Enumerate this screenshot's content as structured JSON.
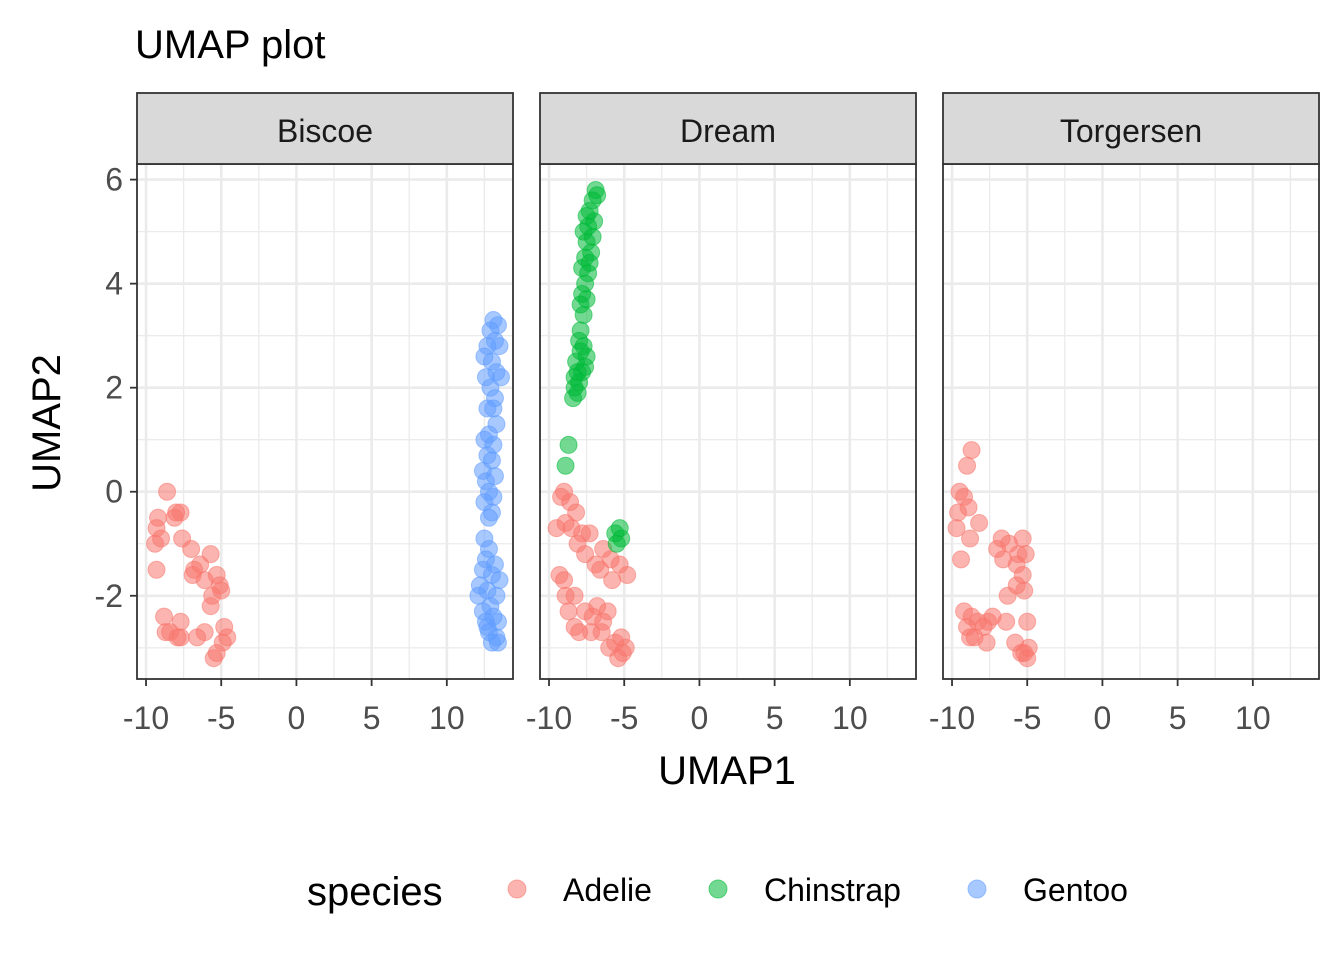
{
  "chart_data": {
    "type": "scatter",
    "title": "UMAP plot",
    "xlabel": "UMAP1",
    "ylabel": "UMAP2",
    "xlim": [
      -10.6,
      14.4
    ],
    "ylim": [
      -3.6,
      6.3
    ],
    "x_ticks": [
      -10,
      -5,
      0,
      5,
      10
    ],
    "y_ticks": [
      -2,
      0,
      2,
      4,
      6
    ],
    "grid": true,
    "legend_position": "bottom",
    "legend_title": "species",
    "facets": [
      "Biscoe",
      "Dream",
      "Torgersen"
    ],
    "series": [
      {
        "name": "Adelie",
        "color": "#F8766D"
      },
      {
        "name": "Chinstrap",
        "color": "#00BA38"
      },
      {
        "name": "Gentoo",
        "color": "#619CFF"
      }
    ],
    "points": {
      "Biscoe": {
        "Adelie": [
          [
            -8.6,
            0.0
          ],
          [
            -8.0,
            -0.4
          ],
          [
            -7.7,
            -0.4
          ],
          [
            -9.2,
            -0.5
          ],
          [
            -9.3,
            -0.7
          ],
          [
            -8.1,
            -0.5
          ],
          [
            -9.4,
            -1.0
          ],
          [
            -9.0,
            -0.9
          ],
          [
            -7.6,
            -0.9
          ],
          [
            -7.0,
            -1.1
          ],
          [
            -6.4,
            -1.4
          ],
          [
            -5.7,
            -1.2
          ],
          [
            -6.8,
            -1.5
          ],
          [
            -6.1,
            -1.7
          ],
          [
            -5.3,
            -1.6
          ],
          [
            -6.9,
            -1.6
          ],
          [
            -5.1,
            -1.8
          ],
          [
            -5.0,
            -1.9
          ],
          [
            -5.6,
            -2.0
          ],
          [
            -5.7,
            -2.2
          ],
          [
            -9.3,
            -1.5
          ],
          [
            -8.8,
            -2.4
          ],
          [
            -7.7,
            -2.5
          ],
          [
            -8.7,
            -2.7
          ],
          [
            -8.4,
            -2.7
          ],
          [
            -7.9,
            -2.8
          ],
          [
            -7.7,
            -2.8
          ],
          [
            -6.6,
            -2.8
          ],
          [
            -6.1,
            -2.7
          ],
          [
            -4.8,
            -2.6
          ],
          [
            -4.6,
            -2.8
          ],
          [
            -4.9,
            -2.9
          ],
          [
            -5.3,
            -3.1
          ],
          [
            -5.5,
            -3.2
          ]
        ],
        "Gentoo": [
          [
            13.1,
            3.3
          ],
          [
            13.4,
            3.2
          ],
          [
            12.9,
            3.1
          ],
          [
            13.2,
            2.9
          ],
          [
            12.7,
            2.8
          ],
          [
            13.5,
            2.8
          ],
          [
            12.5,
            2.6
          ],
          [
            13.0,
            2.5
          ],
          [
            13.3,
            2.3
          ],
          [
            12.6,
            2.2
          ],
          [
            13.6,
            2.2
          ],
          [
            12.9,
            2.0
          ],
          [
            13.2,
            1.8
          ],
          [
            12.7,
            1.6
          ],
          [
            13.1,
            1.6
          ],
          [
            13.3,
            1.3
          ],
          [
            12.8,
            1.1
          ],
          [
            13.1,
            0.9
          ],
          [
            12.5,
            1.0
          ],
          [
            12.7,
            0.7
          ],
          [
            13.0,
            0.6
          ],
          [
            12.4,
            0.4
          ],
          [
            13.2,
            0.3
          ],
          [
            12.6,
            0.2
          ],
          [
            12.8,
            0.0
          ],
          [
            13.1,
            -0.1
          ],
          [
            12.5,
            -0.2
          ],
          [
            13.0,
            -0.4
          ],
          [
            12.8,
            -0.5
          ],
          [
            12.5,
            -0.9
          ],
          [
            12.8,
            -1.1
          ],
          [
            12.6,
            -1.3
          ],
          [
            13.2,
            -1.4
          ],
          [
            12.4,
            -1.5
          ],
          [
            13.0,
            -1.6
          ],
          [
            13.5,
            -1.7
          ],
          [
            12.2,
            -1.8
          ],
          [
            12.7,
            -1.9
          ],
          [
            13.3,
            -2.0
          ],
          [
            12.1,
            -2.0
          ],
          [
            12.9,
            -2.2
          ],
          [
            12.4,
            -2.3
          ],
          [
            13.1,
            -2.4
          ],
          [
            12.6,
            -2.5
          ],
          [
            13.4,
            -2.5
          ],
          [
            12.8,
            -2.7
          ],
          [
            13.3,
            -2.8
          ],
          [
            13.0,
            -2.9
          ],
          [
            13.4,
            -2.9
          ],
          [
            12.7,
            -2.6
          ]
        ]
      },
      "Dream": {
        "Adelie": [
          [
            -9.0,
            0.0
          ],
          [
            -9.2,
            -0.1
          ],
          [
            -8.6,
            -0.2
          ],
          [
            -8.2,
            -0.4
          ],
          [
            -8.9,
            -0.6
          ],
          [
            -8.5,
            -0.7
          ],
          [
            -9.5,
            -0.7
          ],
          [
            -7.8,
            -0.8
          ],
          [
            -8.1,
            -1.0
          ],
          [
            -7.3,
            -0.8
          ],
          [
            -7.6,
            -1.2
          ],
          [
            -6.4,
            -1.1
          ],
          [
            -6.9,
            -1.4
          ],
          [
            -6.6,
            -1.5
          ],
          [
            -5.9,
            -1.3
          ],
          [
            -5.3,
            -1.4
          ],
          [
            -4.8,
            -1.6
          ],
          [
            -5.8,
            -1.7
          ],
          [
            -9.3,
            -1.6
          ],
          [
            -9.0,
            -1.7
          ],
          [
            -8.3,
            -2.0
          ],
          [
            -8.9,
            -2.0
          ],
          [
            -6.8,
            -2.2
          ],
          [
            -6.1,
            -2.3
          ],
          [
            -7.6,
            -2.3
          ],
          [
            -8.7,
            -2.3
          ],
          [
            -7.1,
            -2.4
          ],
          [
            -8.3,
            -2.6
          ],
          [
            -6.4,
            -2.5
          ],
          [
            -7.2,
            -2.7
          ],
          [
            -6.5,
            -2.7
          ],
          [
            -8.0,
            -2.7
          ],
          [
            -5.2,
            -2.8
          ],
          [
            -5.6,
            -2.9
          ],
          [
            -6.0,
            -3.0
          ],
          [
            -5.1,
            -3.1
          ],
          [
            -4.9,
            -3.0
          ],
          [
            -5.4,
            -3.2
          ]
        ],
        "Chinstrap": [
          [
            -6.9,
            5.8
          ],
          [
            -6.8,
            5.7
          ],
          [
            -7.1,
            5.6
          ],
          [
            -7.3,
            5.4
          ],
          [
            -7.5,
            5.3
          ],
          [
            -7.0,
            5.2
          ],
          [
            -7.4,
            5.1
          ],
          [
            -7.7,
            5.0
          ],
          [
            -7.1,
            4.9
          ],
          [
            -7.5,
            4.8
          ],
          [
            -7.2,
            4.6
          ],
          [
            -7.6,
            4.5
          ],
          [
            -7.3,
            4.4
          ],
          [
            -7.8,
            4.3
          ],
          [
            -7.4,
            4.2
          ],
          [
            -7.6,
            4.0
          ],
          [
            -7.8,
            3.8
          ],
          [
            -7.5,
            3.7
          ],
          [
            -7.9,
            3.6
          ],
          [
            -7.7,
            3.4
          ],
          [
            -7.9,
            3.1
          ],
          [
            -8.0,
            2.9
          ],
          [
            -7.7,
            2.8
          ],
          [
            -7.9,
            2.7
          ],
          [
            -7.5,
            2.6
          ],
          [
            -8.2,
            2.5
          ],
          [
            -7.6,
            2.4
          ],
          [
            -8.1,
            2.3
          ],
          [
            -7.8,
            2.3
          ],
          [
            -8.3,
            2.2
          ],
          [
            -8.0,
            2.1
          ],
          [
            -8.3,
            2.0
          ],
          [
            -8.1,
            1.9
          ],
          [
            -8.4,
            1.8
          ],
          [
            -8.7,
            0.9
          ],
          [
            -8.9,
            0.5
          ],
          [
            -5.3,
            -0.7
          ],
          [
            -5.6,
            -0.8
          ],
          [
            -5.2,
            -0.9
          ],
          [
            -5.5,
            -1.0
          ]
        ]
      },
      "Torgersen": {
        "Adelie": [
          [
            -8.7,
            0.8
          ],
          [
            -9.0,
            0.5
          ],
          [
            -9.5,
            0.0
          ],
          [
            -9.2,
            -0.1
          ],
          [
            -8.9,
            -0.3
          ],
          [
            -9.6,
            -0.4
          ],
          [
            -8.2,
            -0.6
          ],
          [
            -9.7,
            -0.7
          ],
          [
            -8.8,
            -0.9
          ],
          [
            -6.7,
            -0.9
          ],
          [
            -5.3,
            -0.9
          ],
          [
            -6.2,
            -1.0
          ],
          [
            -5.6,
            -1.2
          ],
          [
            -7.0,
            -1.1
          ],
          [
            -5.1,
            -1.2
          ],
          [
            -5.7,
            -1.4
          ],
          [
            -6.6,
            -1.3
          ],
          [
            -9.4,
            -1.3
          ],
          [
            -5.3,
            -1.6
          ],
          [
            -5.7,
            -1.8
          ],
          [
            -5.2,
            -1.9
          ],
          [
            -6.3,
            -2.0
          ],
          [
            -9.2,
            -2.3
          ],
          [
            -7.3,
            -2.4
          ],
          [
            -8.7,
            -2.4
          ],
          [
            -8.3,
            -2.5
          ],
          [
            -7.6,
            -2.5
          ],
          [
            -9.0,
            -2.6
          ],
          [
            -7.9,
            -2.6
          ],
          [
            -6.4,
            -2.5
          ],
          [
            -5.0,
            -2.5
          ],
          [
            -8.5,
            -2.8
          ],
          [
            -7.7,
            -2.9
          ],
          [
            -8.8,
            -2.8
          ],
          [
            -5.8,
            -2.9
          ],
          [
            -4.9,
            -3.0
          ],
          [
            -5.2,
            -3.1
          ],
          [
            -5.4,
            -3.1
          ],
          [
            -5.0,
            -3.2
          ]
        ]
      }
    }
  }
}
